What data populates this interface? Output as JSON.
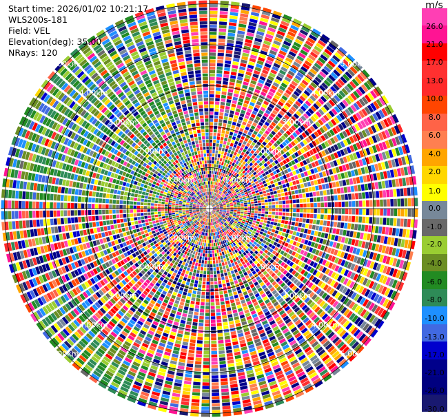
{
  "header": {
    "start_time": "Start time: 2026/01/02 10:21:17",
    "instrument": "WLS200s-181",
    "field": "Field: VEL",
    "elevation": "Elevation(deg): 35.00",
    "nrays": "NRays: 120"
  },
  "colorbar": {
    "unit": "m/s",
    "labels": [
      "26.0",
      "21.0",
      "17.0",
      "13.0",
      "10.0",
      "8.0",
      "6.0",
      "4.0",
      "2.0",
      "1.0",
      "0.0",
      "-1.0",
      "-2.0",
      "-4.0",
      "-6.0",
      "-8.0",
      "-10.0",
      "-13.0",
      "-17.0",
      "-21.0",
      "-26.0",
      "-30.0"
    ],
    "colors": [
      "#ff3fb4",
      "#ff1493",
      "#ff0000",
      "#ff3030",
      "#ff2a2a",
      "#ff4500",
      "#ff6347",
      "#ff7f50",
      "#ffa500",
      "#ffd700",
      "#ffff00",
      "#778899",
      "#696969",
      "#9acd32",
      "#6b8e23",
      "#228b22",
      "#2e8b57",
      "#1e90ff",
      "#4169e1",
      "#0000cd",
      "#00008b",
      "#000080",
      "#191970"
    ]
  },
  "chart_data": {
    "type": "heatmap",
    "subtype": "radar-ppi",
    "field": "VEL",
    "unit": "m/s",
    "nrays": 120,
    "elevation_deg": 35.0,
    "range_rings_km": [
      1,
      2,
      3,
      4,
      5
    ],
    "range_ring_labels": [
      "1.00km",
      "2.00km",
      "3.00km",
      "4.00km",
      "5.00km"
    ],
    "color_range": [
      -30.0,
      26.0
    ]
  }
}
